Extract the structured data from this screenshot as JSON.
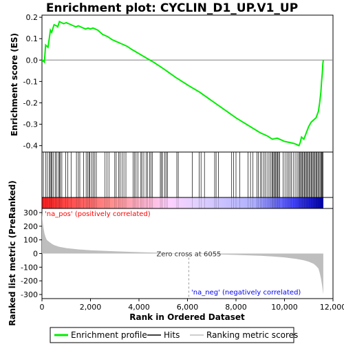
{
  "chart_data": {
    "type": "line",
    "title": "Enrichment plot: CYCLIN_D1_UP.V1_UP",
    "top_panel": {
      "ylabel": "Enrichment score (ES)",
      "ylim": [
        -0.43,
        0.21
      ],
      "yticks": [
        0.2,
        0.1,
        0.0,
        -0.1,
        -0.2,
        -0.3,
        -0.4
      ],
      "ytick_labels": [
        "0.2",
        "0.1",
        "0.0",
        "-0.1",
        "-0.2",
        "-0.3",
        "-0.4"
      ],
      "line_color": "#00ee00",
      "series": [
        {
          "x": [
            0,
            100,
            150,
            250,
            300,
            350,
            400,
            500,
            600,
            650,
            720,
            800,
            900,
            1000,
            1100,
            1200,
            1300,
            1400,
            1500,
            1600,
            1700,
            1800,
            1900,
            2000,
            2100,
            2200,
            2300,
            2400,
            2500,
            2700,
            2900,
            3100,
            3300,
            3500,
            3700,
            4000,
            4300,
            4600,
            5000,
            5500,
            6055,
            6500,
            7000,
            7500,
            8000,
            8500,
            9000,
            9300,
            9500,
            9700,
            9900,
            10000,
            10200,
            10400,
            10500,
            10600,
            10650,
            10700,
            10800,
            10900,
            11000,
            11100,
            11200,
            11300,
            11400,
            11450,
            11500,
            11530,
            11560,
            11580,
            11600
          ],
          "y": [
            0.0,
            -0.01,
            0.07,
            0.06,
            0.1,
            0.14,
            0.13,
            0.165,
            0.16,
            0.155,
            0.18,
            0.175,
            0.17,
            0.175,
            0.17,
            0.165,
            0.16,
            0.155,
            0.16,
            0.155,
            0.15,
            0.145,
            0.15,
            0.145,
            0.15,
            0.145,
            0.14,
            0.13,
            0.12,
            0.11,
            0.095,
            0.085,
            0.075,
            0.065,
            0.05,
            0.03,
            0.01,
            -0.01,
            -0.04,
            -0.08,
            -0.12,
            -0.15,
            -0.19,
            -0.23,
            -0.27,
            -0.305,
            -0.34,
            -0.355,
            -0.37,
            -0.365,
            -0.375,
            -0.38,
            -0.385,
            -0.39,
            -0.395,
            -0.4,
            -0.385,
            -0.36,
            -0.37,
            -0.34,
            -0.31,
            -0.29,
            -0.28,
            -0.27,
            -0.24,
            -0.2,
            -0.15,
            -0.1,
            -0.06,
            -0.02,
            0.0
          ]
        }
      ]
    },
    "hits": [
      60,
      150,
      220,
      300,
      340,
      380,
      420,
      480,
      560,
      600,
      680,
      720,
      760,
      820,
      980,
      1060,
      1200,
      1420,
      1500,
      1560,
      1720,
      1820,
      1880,
      1940,
      1980,
      2050,
      2120,
      2180,
      2240,
      2600,
      2680,
      2760,
      3000,
      3060,
      3160,
      3220,
      3300,
      3380,
      3460,
      3760,
      3820,
      3880,
      3960,
      4080,
      4120,
      4200,
      4300,
      4360,
      4440,
      4500,
      4560,
      4880,
      4920,
      4980,
      5060,
      5120,
      5180,
      5560,
      5620,
      6200,
      6480,
      6560,
      6700,
      7120,
      7180,
      7280,
      7820,
      7900,
      8000,
      8160,
      8500,
      8600,
      8700,
      8860,
      8920,
      9000,
      9060,
      9140,
      9200,
      9280,
      9360,
      9420,
      9480,
      9520,
      9560,
      9600,
      9640,
      9680,
      9720,
      9760,
      9800,
      9940,
      10020,
      10100,
      10160,
      10220,
      10280,
      10360,
      10440,
      10520,
      10580,
      10620,
      10660,
      10700,
      10740,
      10780,
      10820,
      10860,
      10900,
      10940,
      10980,
      11020,
      11060,
      11100,
      11140,
      11180,
      11220,
      11260,
      11300,
      11340,
      11380,
      11420,
      11460,
      11500,
      11530,
      11560,
      11590
    ],
    "bottom_panel": {
      "ylabel": "Ranked list metric (PreRanked)",
      "ylim": [
        -330,
        330
      ],
      "yticks": [
        300,
        200,
        100,
        0,
        -100,
        -200,
        -300
      ],
      "ytick_labels": [
        "300",
        "200",
        "100",
        "0",
        "-100",
        "-200",
        "-300"
      ],
      "fill_color": "#bebebe",
      "metric_x": [
        0,
        20,
        50,
        100,
        150,
        200,
        300,
        400,
        500,
        700,
        1000,
        1500,
        2000,
        3000,
        4000,
        5000,
        6055,
        7000,
        8000,
        9000,
        9500,
        10000,
        10500,
        10800,
        11000,
        11200,
        11300,
        11400,
        11450,
        11500,
        11550,
        11600
      ],
      "metric_y": [
        300,
        250,
        200,
        150,
        120,
        100,
        85,
        72,
        62,
        50,
        40,
        30,
        24,
        16,
        10,
        5,
        0,
        -5,
        -10,
        -16,
        -21,
        -28,
        -40,
        -50,
        -60,
        -75,
        -90,
        -110,
        -140,
        -180,
        -230,
        -300
      ]
    },
    "x_axis": {
      "xlabel": "Rank in Ordered Dataset",
      "xlim": [
        0,
        12000
      ],
      "xticks": [
        0,
        2000,
        4000,
        6000,
        8000,
        10000,
        12000
      ],
      "xtick_labels": [
        "0",
        "2,000",
        "4,000",
        "6,000",
        "8,000",
        "10,000",
        "12,000"
      ],
      "n_genes": 11600
    },
    "zero_cross": {
      "rank": 6055,
      "label": "Zero cross at 6055"
    },
    "annotations": {
      "pos_label": "'na_pos' (positively correlated)",
      "neg_label": "'na_neg' (negatively correlated)",
      "pos_color": "#ff0000",
      "neg_color": "#0000ff"
    },
    "legend": {
      "placement": "bottom",
      "items": [
        {
          "label": "Enrichment profile",
          "color": "#00ee00"
        },
        {
          "label": "Hits",
          "color": "#000000"
        },
        {
          "label": "Ranking metric scores",
          "color": "#bebebe"
        }
      ]
    }
  }
}
